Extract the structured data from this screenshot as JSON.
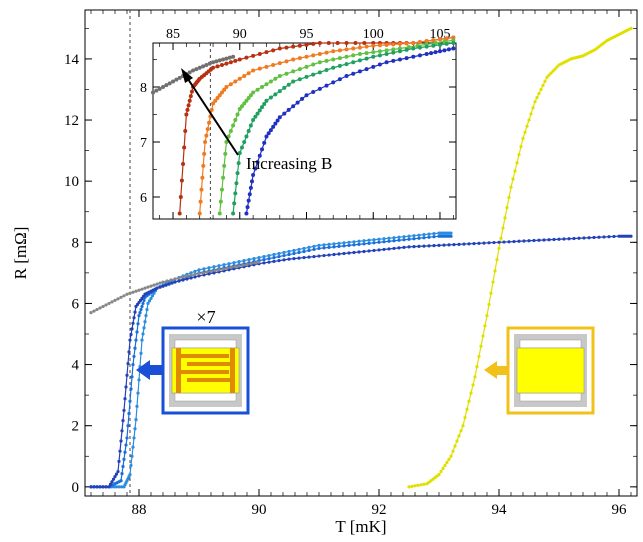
{
  "chart_data": [
    {
      "type": "scatter",
      "xlabel": "T  [mK]",
      "ylabel": "R  [mΩ]",
      "xlim": [
        87.1,
        96.3
      ],
      "ylim": [
        -0.3,
        15.6
      ],
      "xticks": [
        "88",
        "90",
        "92",
        "94",
        "96"
      ],
      "yticks": [
        "0",
        "2",
        "4",
        "6",
        "8",
        "10",
        "12",
        "14"
      ],
      "grid": false,
      "series": [
        {
          "color": "#e0e000",
          "x": [
            92.5,
            92.8,
            93.0,
            93.2,
            93.4,
            93.6,
            93.8,
            94.0,
            94.2,
            94.4,
            94.6,
            94.8,
            95.0,
            95.2,
            95.4,
            95.6,
            95.8,
            96.0,
            96.2
          ],
          "y": [
            0.0,
            0.1,
            0.4,
            1.0,
            2.0,
            3.6,
            5.6,
            7.8,
            9.8,
            11.4,
            12.6,
            13.4,
            13.8,
            14.0,
            14.1,
            14.3,
            14.6,
            14.8,
            15.0
          ]
        },
        {
          "color": "#2a8de0",
          "x": [
            87.2,
            87.5,
            87.75,
            87.85,
            87.95,
            88.05,
            88.15,
            88.3,
            88.6,
            89.0,
            89.5,
            90.0,
            90.5,
            91.0,
            91.5,
            92.0,
            92.5,
            93.0,
            93.2
          ],
          "y": [
            0.0,
            0.0,
            0.0,
            0.4,
            2.2,
            4.8,
            6.0,
            6.5,
            6.8,
            7.1,
            7.3,
            7.5,
            7.7,
            7.9,
            8.0,
            8.1,
            8.2,
            8.3,
            8.3
          ]
        },
        {
          "color": "#1a6fd8",
          "x": [
            87.2,
            87.5,
            87.7,
            87.8,
            87.9,
            88.0,
            88.1,
            88.3,
            88.6,
            89.0,
            89.5,
            90.0,
            90.5,
            91.0,
            91.5,
            92.0,
            92.5,
            93.0,
            93.2
          ],
          "y": [
            0.0,
            0.0,
            0.2,
            1.6,
            4.0,
            5.6,
            6.2,
            6.5,
            6.7,
            7.0,
            7.2,
            7.4,
            7.6,
            7.8,
            7.9,
            8.0,
            8.1,
            8.2,
            8.2
          ]
        },
        {
          "color": "#2342b8",
          "x": [
            87.2,
            87.5,
            87.65,
            87.75,
            87.85,
            87.95,
            88.1,
            88.3,
            88.6,
            89.0,
            89.5,
            90.0,
            90.5,
            91.0,
            91.5,
            92.0,
            92.5,
            93.0,
            93.5,
            94.0,
            94.5,
            95.0,
            95.5,
            96.0,
            96.2
          ],
          "y": [
            0.0,
            0.0,
            0.5,
            2.5,
            4.8,
            5.9,
            6.3,
            6.5,
            6.7,
            6.9,
            7.1,
            7.3,
            7.45,
            7.55,
            7.65,
            7.75,
            7.85,
            7.9,
            7.95,
            8.0,
            8.05,
            8.1,
            8.15,
            8.2,
            8.2
          ]
        },
        {
          "color": "#888888",
          "x": [
            87.2,
            87.5,
            87.8,
            88.1,
            88.4,
            88.8,
            89.2,
            89.6,
            90.0
          ],
          "y": [
            5.7,
            6.0,
            6.3,
            6.5,
            6.7,
            6.9,
            7.05,
            7.2,
            7.35
          ]
        }
      ],
      "vline_x": 87.85,
      "annotations": [
        "×7"
      ]
    },
    {
      "type": "line",
      "xlim": [
        83.5,
        106.2
      ],
      "ylim": [
        5.6,
        8.8
      ],
      "xticks": [
        "85",
        "90",
        "95",
        "100",
        "105"
      ],
      "yticks": [
        "6",
        "7",
        "8"
      ],
      "grid": false,
      "vline_x": 87.8,
      "annotation": "Increasing B",
      "series": [
        {
          "color": "#b83010",
          "x": [
            85.5,
            86.0,
            86.5,
            87.0,
            88.0,
            90.0,
            93.0,
            96.0,
            100.0,
            103.0,
            106.0
          ],
          "y": [
            5.7,
            7.5,
            8.0,
            8.15,
            8.35,
            8.5,
            8.7,
            8.8,
            8.8,
            8.8,
            8.9
          ]
        },
        {
          "color": "#f07a20",
          "x": [
            87.0,
            87.4,
            88.0,
            89.0,
            91.0,
            94.0,
            97.0,
            100.0,
            103.0,
            106.0
          ],
          "y": [
            5.7,
            7.0,
            7.7,
            8.0,
            8.3,
            8.5,
            8.65,
            8.75,
            8.8,
            8.9
          ]
        },
        {
          "color": "#60c040",
          "x": [
            88.5,
            89.0,
            90.0,
            91.0,
            93.0,
            96.0,
            99.0,
            102.0,
            106.0
          ],
          "y": [
            5.7,
            7.0,
            7.6,
            7.9,
            8.2,
            8.45,
            8.6,
            8.7,
            8.85
          ]
        },
        {
          "color": "#20a060",
          "x": [
            89.5,
            90.0,
            91.0,
            92.0,
            94.0,
            97.0,
            100.0,
            103.0,
            106.0
          ],
          "y": [
            5.7,
            6.8,
            7.4,
            7.75,
            8.1,
            8.35,
            8.55,
            8.7,
            8.8
          ]
        },
        {
          "color": "#2030c0",
          "x": [
            90.5,
            91.0,
            92.0,
            93.0,
            95.0,
            98.0,
            101.0,
            104.0,
            106.0
          ],
          "y": [
            5.7,
            6.4,
            7.1,
            7.45,
            7.85,
            8.2,
            8.45,
            8.6,
            8.7
          ]
        },
        {
          "color": "#707070",
          "x": [
            83.5,
            85.0,
            86.5,
            88.0,
            89.5
          ],
          "y": [
            7.9,
            8.1,
            8.3,
            8.45,
            8.55
          ]
        }
      ]
    }
  ],
  "colors": {
    "device_blue_frame": "#1a4fd8",
    "device_yellow_frame": "#f2c01a",
    "device_fill": "#ffff00",
    "device_gray": "#c8c8c8",
    "device_orange_comb": "#e08a00"
  },
  "icons": [
    "blue-arrow-icon",
    "yellow-arrow-icon",
    "comb-device-icon",
    "plain-device-icon"
  ]
}
